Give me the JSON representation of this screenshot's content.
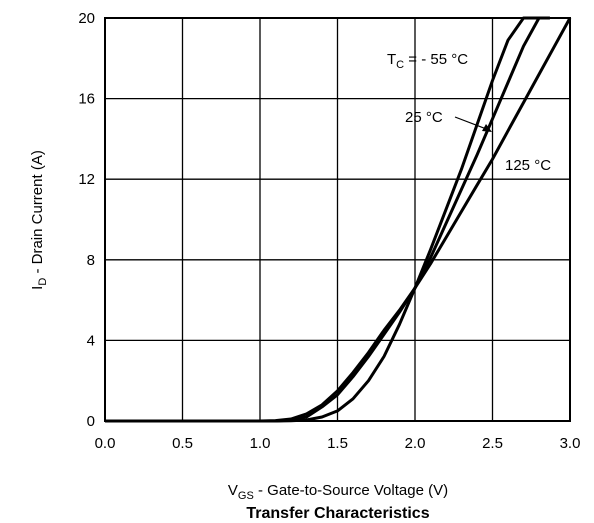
{
  "chart_data": {
    "type": "line",
    "title": "Transfer Characteristics",
    "xlabel": {
      "main": "V",
      "sub": "GS",
      "rest": " - Gate-to-Source Voltage (V)"
    },
    "ylabel": {
      "main": "I",
      "sub": "D",
      "rest": " - Drain Current (A)"
    },
    "xlim": [
      0,
      3.0
    ],
    "ylim": [
      0,
      20
    ],
    "x_ticks": [
      "0.0",
      "0.5",
      "1.0",
      "1.5",
      "2.0",
      "2.5",
      "3.0"
    ],
    "y_ticks": [
      "0",
      "4",
      "8",
      "12",
      "16",
      "20"
    ],
    "grid": true,
    "series": [
      {
        "name": "- 55 °C",
        "x": [
          1.1,
          1.2,
          1.3,
          1.4,
          1.5,
          1.6,
          1.7,
          1.8,
          1.9,
          2.0,
          2.1,
          2.2,
          2.3,
          2.4,
          2.5,
          2.6,
          2.7,
          2.8
        ],
        "y": [
          0,
          0.01,
          0.05,
          0.2,
          0.5,
          1.1,
          2.0,
          3.2,
          4.8,
          6.6,
          8.5,
          10.5,
          12.5,
          14.7,
          16.9,
          18.9,
          20.0,
          20.0
        ]
      },
      {
        "name": "25 °C",
        "x": [
          1.1,
          1.2,
          1.3,
          1.4,
          1.5,
          1.6,
          1.7,
          1.8,
          1.9,
          2.0,
          2.1,
          2.2,
          2.3,
          2.4,
          2.5,
          2.6,
          2.7,
          2.8,
          2.87
        ],
        "y": [
          0,
          0.05,
          0.2,
          0.7,
          1.3,
          2.2,
          3.2,
          4.3,
          5.4,
          6.6,
          8.1,
          9.8,
          11.5,
          13.2,
          15.0,
          16.8,
          18.6,
          20.0,
          20.0
        ]
      },
      {
        "name": "125 °C",
        "x": [
          1.0,
          1.1,
          1.2,
          1.3,
          1.4,
          1.5,
          1.6,
          1.7,
          1.8,
          1.9,
          2.0,
          2.1,
          2.2,
          2.3,
          2.4,
          2.5,
          2.6,
          2.7,
          2.8,
          2.9,
          3.0
        ],
        "y": [
          0,
          0.02,
          0.1,
          0.35,
          0.8,
          1.5,
          2.4,
          3.4,
          4.5,
          5.5,
          6.6,
          7.8,
          9.1,
          10.4,
          11.7,
          13.0,
          14.4,
          15.8,
          17.2,
          18.6,
          20.0
        ]
      }
    ],
    "annotations": [
      {
        "prefix_main": "T",
        "prefix_sub": "C",
        "prefix_rest": " = - 55 °C",
        "series": "- 55 °C"
      },
      {
        "text": "25 °C",
        "series": "25 °C"
      },
      {
        "text": "125 °C",
        "series": "125 °C"
      }
    ]
  }
}
